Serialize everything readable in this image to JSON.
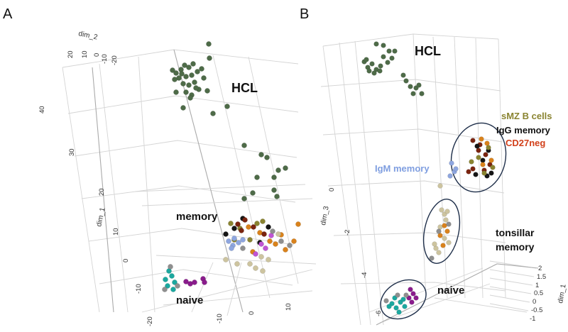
{
  "colors": {
    "HCL": "#4e6b48",
    "naive_teal": "#1ba89f",
    "naive_purple": "#8a1c8c",
    "orange": "#d9821c",
    "olive": "#8a8431",
    "black": "#151515",
    "darkred": "#7a2410",
    "lightblue": "#8ea6df",
    "magenta": "#c055d4",
    "tan": "#cdc49f",
    "gray": "#8f8f8f",
    "label_smz": "#8a8431",
    "label_cd27": "#d2401a",
    "label_igm": "#7f9ee0"
  },
  "chart_data": [
    {
      "type": "scatter",
      "panel": "A",
      "axes": {
        "dim_1": {
          "label": "dim_1",
          "ticks": [
            "40",
            "30",
            "20",
            "10",
            "0",
            "-10",
            "-20"
          ]
        },
        "dim_2": {
          "label": "dim_2",
          "ticks": [
            "20",
            "10",
            "0",
            "-10",
            "-20"
          ]
        },
        "dim_3": {
          "label": "",
          "ticks": [
            "-10",
            "0",
            "10"
          ]
        }
      },
      "labels": [
        "HCL",
        "memory",
        "naive"
      ],
      "series": [
        {
          "name": "HCL",
          "color_key": "HCL",
          "points": [
            [
              243,
              99
            ],
            [
              248,
              103
            ],
            [
              255,
              98
            ],
            [
              260,
              92
            ],
            [
              266,
              95
            ],
            [
              272,
              90
            ],
            [
              252,
              110
            ],
            [
              262,
              108
            ],
            [
              270,
              106
            ],
            [
              278,
              101
            ],
            [
              284,
              97
            ],
            [
              258,
              118
            ],
            [
              266,
              120
            ],
            [
              274,
              116
            ],
            [
              280,
              126
            ],
            [
              262,
              130
            ],
            [
              270,
              134
            ],
            [
              276,
              124
            ],
            [
              287,
              110
            ],
            [
              292,
              128
            ],
            [
              256,
              104
            ],
            [
              246,
              112
            ],
            [
              295,
              82
            ],
            [
              294,
              62
            ],
            [
              300,
              160
            ],
            [
              320,
              150
            ],
            [
              248,
              130
            ],
            [
              258,
              152
            ],
            [
              268,
              138
            ],
            [
              344,
              205
            ],
            [
              368,
              218
            ],
            [
              392,
              240
            ],
            [
              386,
              250
            ],
            [
              402,
              237
            ],
            [
              362,
              250
            ],
            [
              356,
              272
            ],
            [
              344,
              280
            ],
            [
              386,
              268
            ],
            [
              390,
              277
            ],
            [
              376,
              222
            ]
          ]
        },
        {
          "name": "naive teal",
          "color_key": "naive_teal",
          "points": [
            [
              238,
              382
            ],
            [
              242,
              389
            ],
            [
              233,
              394
            ],
            [
              246,
              398
            ],
            [
              236,
              403
            ],
            [
              244,
              408
            ]
          ]
        },
        {
          "name": "naive purple",
          "color_key": "naive_purple",
          "points": [
            [
              262,
              397
            ],
            [
              268,
              400
            ],
            [
              274,
              398
            ],
            [
              286,
              393
            ],
            [
              288,
              398
            ]
          ]
        },
        {
          "name": "naive gray",
          "color_key": "gray",
          "points": [
            [
              240,
              376
            ],
            [
              232,
              408
            ],
            [
              250,
              403
            ]
          ]
        },
        {
          "name": "memory orange",
          "color_key": "orange",
          "points": [
            [
              350,
              320
            ],
            [
              366,
              328
            ],
            [
              380,
              340
            ],
            [
              396,
              331
            ],
            [
              420,
              316
            ],
            [
              402,
              352
            ],
            [
              356,
              355
            ],
            [
              388,
              344
            ],
            [
              414,
              340
            ]
          ]
        },
        {
          "name": "memory olive",
          "color_key": "olive",
          "points": [
            [
              325,
              315
            ],
            [
              338,
              322
            ],
            [
              362,
              315
            ],
            [
              370,
              312
            ],
            [
              352,
              338
            ],
            [
              330,
              338
            ]
          ]
        },
        {
          "name": "memory black",
          "color_key": "black",
          "points": [
            [
              318,
              330
            ],
            [
              330,
              322
            ],
            [
              342,
              308
            ],
            [
              366,
              342
            ],
            [
              378,
              320
            ]
          ]
        },
        {
          "name": "memory dark red",
          "color_key": "darkred",
          "points": [
            [
              340,
              325
            ],
            [
              357,
              320
            ],
            [
              372,
              330
            ],
            [
              345,
              310
            ],
            [
              335,
              316
            ]
          ]
        },
        {
          "name": "memory light blue",
          "color_key": "lightblue",
          "points": [
            [
              322,
              340
            ],
            [
              328,
              346
            ],
            [
              336,
              342
            ],
            [
              342,
              338
            ],
            [
              330,
              336
            ],
            [
              326,
              350
            ]
          ]
        },
        {
          "name": "memory magenta",
          "color_key": "magenta",
          "points": [
            [
              360,
              358
            ],
            [
              382,
              332
            ],
            [
              374,
              350
            ],
            [
              368,
              344
            ]
          ]
        },
        {
          "name": "memory tan",
          "color_key": "tan",
          "points": [
            [
              318,
              366
            ],
            [
              334,
              372
            ],
            [
              352,
              372
            ],
            [
              360,
              378
            ],
            [
              370,
              382
            ],
            [
              368,
              362
            ],
            [
              378,
              366
            ],
            [
              392,
              330
            ]
          ]
        },
        {
          "name": "memory gray",
          "color_key": "gray",
          "points": [
            [
              384,
              326
            ],
            [
              408,
              346
            ],
            [
              396,
              340
            ],
            [
              342,
              350
            ]
          ]
        }
      ]
    },
    {
      "type": "scatter",
      "panel": "B",
      "axes": {
        "dim_1": {
          "label": "dim_1",
          "ticks": [
            "2",
            "1.5",
            "1",
            "0.5",
            "0",
            "-0.5",
            "-1"
          ]
        },
        "dim_3": {
          "label": "dim_3",
          "ticks": [
            "0",
            "-2",
            "-4",
            "-6"
          ]
        }
      },
      "labels": [
        "HCL",
        "sMZ B cells",
        "IgG memory",
        "CD27neg",
        "IgM memory",
        "tonsillar memory",
        "naive"
      ],
      "series": [
        {
          "name": "HCL",
          "color_key": "HCL",
          "points": [
            [
              513,
              87
            ],
            [
              518,
              95
            ],
            [
              524,
              90
            ],
            [
              530,
              98
            ],
            [
              536,
              93
            ],
            [
              540,
              80
            ],
            [
              546,
              88
            ],
            [
              552,
              82
            ],
            [
              548,
              72
            ],
            [
              530,
              62
            ],
            [
              540,
              64
            ],
            [
              556,
              72
            ],
            [
              520,
              100
            ],
            [
              527,
              103
            ],
            [
              535,
              100
            ],
            [
              568,
              106
            ],
            [
              572,
              114
            ],
            [
              578,
              122
            ],
            [
              586,
              124
            ],
            [
              594,
              132
            ],
            [
              582,
              132
            ],
            [
              590,
              120
            ],
            [
              516,
              84
            ]
          ]
        },
        {
          "name": "CD27neg",
          "color_key": "darkred",
          "points": [
            [
              666,
              198
            ],
            [
              674,
              212
            ],
            [
              684,
              218
            ],
            [
              666,
              238
            ],
            [
              660,
              242
            ],
            [
              682,
              240
            ],
            [
              676,
              204
            ],
            [
              690,
              232
            ]
          ]
        },
        {
          "name": "IgG memory",
          "color_key": "black",
          "points": [
            [
              672,
              206
            ],
            [
              680,
              226
            ],
            [
              670,
              246
            ],
            [
              686,
              248
            ],
            [
              692,
              244
            ],
            [
              688,
              212
            ]
          ]
        },
        {
          "name": "sMZ B cells orange",
          "color_key": "orange",
          "points": [
            [
              678,
              196
            ],
            [
              686,
              202
            ],
            [
              680,
              232
            ],
            [
              692,
              226
            ]
          ]
        },
        {
          "name": "sMZ B cells olive",
          "color_key": "olive",
          "points": [
            [
              688,
              208
            ],
            [
              674,
              222
            ],
            [
              682,
              244
            ],
            [
              694,
              236
            ],
            [
              664,
              228
            ]
          ]
        },
        {
          "name": "IgM memory",
          "color_key": "lightblue",
          "points": [
            [
              636,
              230
            ],
            [
              640,
              242
            ],
            [
              634,
              248
            ],
            [
              642,
              238
            ]
          ]
        },
        {
          "name": "tonsillar tan",
          "color_key": "tan",
          "points": [
            [
              622,
              296
            ],
            [
              626,
              302
            ],
            [
              630,
              298
            ],
            [
              620,
              320
            ],
            [
              628,
              310
            ],
            [
              614,
              350
            ],
            [
              618,
              356
            ],
            [
              612,
              344
            ],
            [
              626,
              336
            ],
            [
              632,
              342
            ],
            [
              620,
              262
            ]
          ]
        },
        {
          "name": "tonsillar orange",
          "color_key": "orange",
          "points": [
            [
              626,
              318
            ],
            [
              630,
              326
            ],
            [
              620,
              332
            ],
            [
              624,
              346
            ]
          ]
        },
        {
          "name": "tonsillar gray",
          "color_key": "gray",
          "points": [
            [
              618,
              326
            ],
            [
              608,
              364
            ],
            [
              632,
              316
            ]
          ]
        },
        {
          "name": "naive teal",
          "color_key": "naive_teal",
          "points": [
            [
              552,
              428
            ],
            [
              558,
              434
            ],
            [
              564,
              426
            ],
            [
              570,
              432
            ],
            [
              562,
              440
            ],
            [
              556,
              420
            ],
            [
              548,
              432
            ],
            [
              568,
              422
            ]
          ]
        },
        {
          "name": "naive purple",
          "color_key": "naive_purple",
          "points": [
            [
              578,
              408
            ],
            [
              582,
              414
            ],
            [
              586,
              420
            ],
            [
              576,
              420
            ],
            [
              580,
              426
            ]
          ]
        },
        {
          "name": "naive gray",
          "color_key": "gray",
          "points": [
            [
              544,
              424
            ],
            [
              560,
              416
            ],
            [
              572,
              416
            ]
          ]
        }
      ]
    }
  ]
}
